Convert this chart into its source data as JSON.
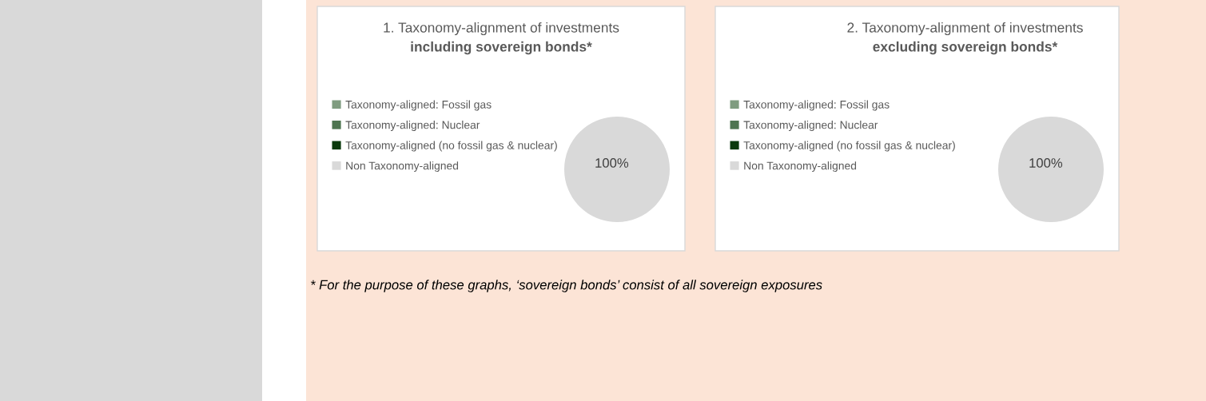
{
  "chart_data": [
    {
      "type": "pie",
      "title": "1. Taxonomy-alignment of investments",
      "subtitle": "including sovereign bonds*",
      "categories": [
        "Taxonomy-aligned: Fossil gas",
        "Taxonomy-aligned: Nuclear",
        "Taxonomy-aligned (no fossil gas & nuclear)",
        "Non Taxonomy-aligned"
      ],
      "values": [
        0,
        0,
        0,
        100
      ],
      "colors": [
        "#7f9c80",
        "#4e7550",
        "#0b3a0c",
        "#d9d9d9"
      ],
      "value_labels": [
        null,
        null,
        null,
        "100%"
      ],
      "legend": "left",
      "annotations": [
        "* For the purpose of these graphs, ‘sovereign bonds’ consist of all sovereign exposures"
      ]
    },
    {
      "type": "pie",
      "title": "2. Taxonomy-alignment of investments",
      "subtitle": "excluding sovereign bonds*",
      "categories": [
        "Taxonomy-aligned: Fossil gas",
        "Taxonomy-aligned: Nuclear",
        "Taxonomy-aligned (no fossil gas & nuclear)",
        "Non Taxonomy-aligned"
      ],
      "values": [
        0,
        0,
        0,
        100
      ],
      "colors": [
        "#7f9c80",
        "#4e7550",
        "#0b3a0c",
        "#d9d9d9"
      ],
      "value_labels": [
        null,
        null,
        null,
        "100%"
      ],
      "legend": "left"
    }
  ]
}
